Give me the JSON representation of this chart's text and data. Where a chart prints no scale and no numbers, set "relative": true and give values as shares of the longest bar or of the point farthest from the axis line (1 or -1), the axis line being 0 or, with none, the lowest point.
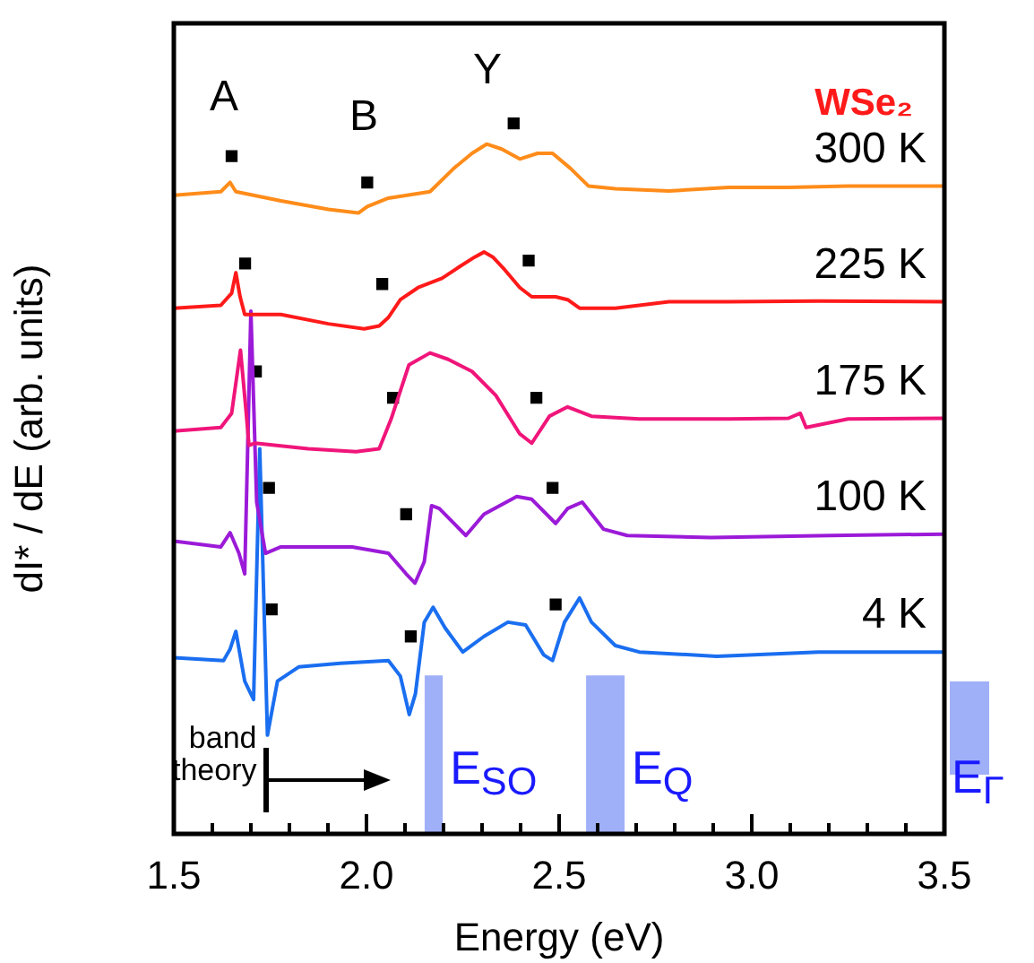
{
  "chart_data": {
    "type": "line",
    "title": "WSe₂",
    "xlabel": "Energy (eV)",
    "ylabel": "dI* / dE (arb. units)",
    "relative": true,
    "legend": false,
    "grid": false,
    "xlim": [
      1.5,
      3.5
    ],
    "xticks": [
      1.5,
      {
        "value": 1.6,
        "label": null
      },
      {
        "value": 1.7,
        "label": null
      },
      {
        "value": 1.8,
        "label": null
      },
      {
        "value": 1.9,
        "label": null
      },
      {
        "value": 2,
        "label": "2.0"
      },
      {
        "value": 2.1,
        "label": null
      },
      {
        "value": 2.2,
        "label": null
      },
      {
        "value": 2.3,
        "label": null
      },
      {
        "value": 2.4,
        "label": null
      },
      2.5,
      {
        "value": 2.6,
        "label": null
      },
      {
        "value": 2.7,
        "label": null
      },
      {
        "value": 2.8,
        "label": null
      },
      {
        "value": 2.9,
        "label": null
      },
      {
        "value": 3,
        "label": "3.0"
      },
      {
        "value": 3.1,
        "label": null
      },
      {
        "value": 3.2,
        "label": null
      },
      {
        "value": 3.3,
        "label": null
      },
      {
        "value": 3.4,
        "label": null
      },
      3.5
    ],
    "series": [
      {
        "name": "300 K",
        "color": "#ff8c1a",
        "x": [
          1.5,
          1.622,
          1.646,
          1.661,
          1.778,
          1.901,
          1.979,
          2.002,
          2.057,
          2.165,
          2.227,
          2.274,
          2.312,
          2.351,
          2.398,
          2.444,
          2.483,
          2.529,
          2.576,
          2.646,
          2.785,
          2.94,
          3.095,
          3.25,
          3.5
        ],
        "values": [
          0.899,
          0.904,
          0.917,
          0.904,
          0.891,
          0.879,
          0.874,
          0.883,
          0.895,
          0.904,
          0.937,
          0.958,
          0.971,
          0.964,
          0.95,
          0.958,
          0.958,
          0.937,
          0.912,
          0.908,
          0.905,
          0.91,
          0.91,
          0.912,
          0.912
        ]
      },
      {
        "name": "225 K",
        "color": "#ff1a1a",
        "x": [
          1.5,
          1.622,
          1.65,
          1.661,
          1.672,
          1.684,
          1.778,
          1.901,
          1.994,
          2.033,
          2.057,
          2.088,
          2.134,
          2.196,
          2.243,
          2.281,
          2.305,
          2.328,
          2.359,
          2.398,
          2.429,
          2.491,
          2.522,
          2.553,
          2.646,
          2.785,
          2.94,
          3.173,
          3.5
        ],
        "values": [
          0.74,
          0.744,
          0.761,
          0.79,
          0.756,
          0.731,
          0.731,
          0.718,
          0.711,
          0.715,
          0.727,
          0.752,
          0.769,
          0.782,
          0.799,
          0.812,
          0.819,
          0.812,
          0.794,
          0.769,
          0.756,
          0.756,
          0.752,
          0.74,
          0.74,
          0.749,
          0.749,
          0.75,
          0.749
        ]
      },
      {
        "name": "175 K",
        "color": "#f0157a",
        "x": [
          1.5,
          1.622,
          1.65,
          1.673,
          1.688,
          1.695,
          1.711,
          1.849,
          1.973,
          2.033,
          2.064,
          2.11,
          2.165,
          2.212,
          2.274,
          2.336,
          2.398,
          2.429,
          2.475,
          2.522,
          2.584,
          2.708,
          2.94,
          3.095,
          3.126,
          3.141,
          3.25,
          3.5
        ],
        "values": [
          0.567,
          0.572,
          0.592,
          0.681,
          0.592,
          0.547,
          0.55,
          0.542,
          0.538,
          0.542,
          0.584,
          0.66,
          0.677,
          0.668,
          0.651,
          0.617,
          0.563,
          0.55,
          0.588,
          0.601,
          0.588,
          0.584,
          0.584,
          0.585,
          0.592,
          0.572,
          0.584,
          0.585
        ]
      },
      {
        "name": "100 K",
        "color": "#9b1ad8",
        "x": [
          1.5,
          1.622,
          1.646,
          1.669,
          1.684,
          1.7,
          1.715,
          1.738,
          1.778,
          1.963,
          2.057,
          2.103,
          2.126,
          2.15,
          2.169,
          2.189,
          2.258,
          2.305,
          2.39,
          2.429,
          2.491,
          2.522,
          2.56,
          2.615,
          2.677,
          2.894,
          3.204,
          3.5
        ],
        "values": [
          0.412,
          0.404,
          0.424,
          0.395,
          0.366,
          0.736,
          0.467,
          0.395,
          0.404,
          0.404,
          0.395,
          0.366,
          0.353,
          0.383,
          0.462,
          0.458,
          0.42,
          0.45,
          0.475,
          0.471,
          0.437,
          0.458,
          0.467,
          0.429,
          0.42,
          0.417,
          0.42,
          0.422
        ]
      },
      {
        "name": "4 K",
        "color": "#1a6ef0",
        "x": [
          1.5,
          1.629,
          1.646,
          1.661,
          1.684,
          1.707,
          1.723,
          1.743,
          1.769,
          1.824,
          1.932,
          2.057,
          2.088,
          2.111,
          2.127,
          2.15,
          2.173,
          2.204,
          2.25,
          2.305,
          2.367,
          2.413,
          2.46,
          2.483,
          2.514,
          2.553,
          2.584,
          2.646,
          2.708,
          2.909,
          3.173,
          3.5
        ],
        "values": [
          0.248,
          0.244,
          0.26,
          0.285,
          0.215,
          0.189,
          0.542,
          0.139,
          0.215,
          0.235,
          0.24,
          0.244,
          0.222,
          0.168,
          0.197,
          0.298,
          0.319,
          0.29,
          0.256,
          0.278,
          0.298,
          0.294,
          0.252,
          0.244,
          0.298,
          0.332,
          0.298,
          0.265,
          0.256,
          0.25,
          0.256,
          0.256
        ]
      },
      {
        "type": "scatter",
        "marker": "square",
        "color": "#000000",
        "x": [
          1.65,
          2.002,
          2.382,
          1.685,
          2.041,
          2.421,
          1.713,
          2.069,
          2.441,
          1.747,
          2.103,
          2.483,
          1.754,
          2.115,
          2.491
        ],
        "values": [
          0.954,
          0.917,
          1,
          0.803,
          0.774,
          0.807,
          0.651,
          0.614,
          0.614,
          0.487,
          0.45,
          0.487,
          0.316,
          0.278,
          0.323
        ]
      }
    ],
    "bands": [
      {
        "axis": "x",
        "from": 2.151,
        "to": 2.198,
        "label": "E$_{SO}$",
        "color": "#a0b0f8"
      },
      {
        "axis": "x",
        "from": 2.57,
        "to": 2.67,
        "label": "E$_{Q}$",
        "color": "#a0b0f8"
      }
    ],
    "annotations": [
      "A",
      "B",
      "Y",
      "band theory",
      "E$_{Γ}$"
    ]
  }
}
